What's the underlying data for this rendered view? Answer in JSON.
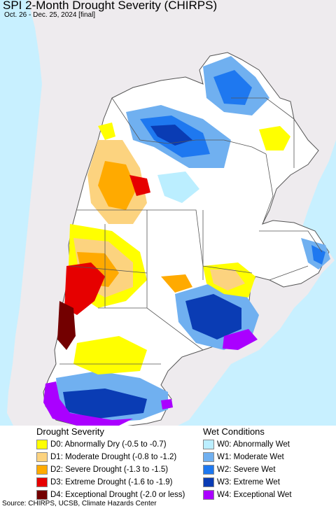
{
  "title": "SPI 2-Month Drought Severity (CHIRPS)",
  "subtitle": "Oct. 26 - Dec. 25, 2024 [final]",
  "legend": {
    "drought_heading": "Drought Severity",
    "wet_heading": "Wet Conditions",
    "drought": [
      {
        "label": "D0: Abnormally Dry (-0.5 to -0.7)",
        "color": "#ffff00"
      },
      {
        "label": "D1: Moderate Drought (-0.8 to -1.2)",
        "color": "#fcd37f"
      },
      {
        "label": "D2: Severe Drought (-1.3 to -1.5)",
        "color": "#ffaa00"
      },
      {
        "label": "D3: Extreme Drought (-1.6 to -1.9)",
        "color": "#e60000"
      },
      {
        "label": "D4: Exceptional Drought (-2.0 or less)",
        "color": "#730000"
      }
    ],
    "wet": [
      {
        "label": "W0: Abnormally Wet",
        "color": "#bbeeff"
      },
      {
        "label": "W1: Moderate Wet",
        "color": "#70b0f0"
      },
      {
        "label": "W2: Severe Wet",
        "color": "#1e78f0"
      },
      {
        "label": "W3: Extreme Wet",
        "color": "#0a3cb4"
      },
      {
        "label": "W4: Exceptional Wet",
        "color": "#aa00ff"
      }
    ]
  },
  "source": "Source: CHIRPS, UCSB, Climate Hazards Center",
  "map_colors": {
    "ocean": "#c8f0ff",
    "outside_land": "#eeebee",
    "region_land": "#ffffff",
    "border": "#555555"
  }
}
